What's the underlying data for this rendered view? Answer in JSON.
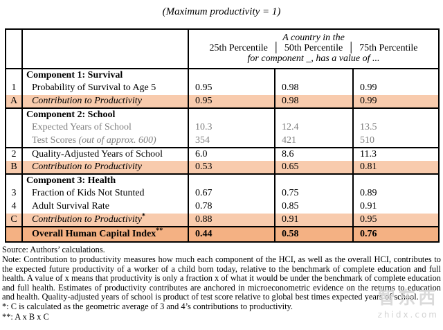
{
  "title": "(Maximum productivity = 1)",
  "header": {
    "line1": "A country in the",
    "separator": "│",
    "percentiles": [
      "25th Percentile",
      "50th Percentile",
      "75th Percentile"
    ],
    "line3": "for component _, has a value of ..."
  },
  "rows": [
    {
      "num": "",
      "label": "Component 1: Survival",
      "values": [
        "",
        "",
        ""
      ]
    },
    {
      "num": "1",
      "label": "Probability of Survival to Age 5",
      "values": [
        "0.95",
        "0.98",
        "0.99"
      ]
    },
    {
      "num": "A",
      "label": "Contribution to Productivity",
      "values": [
        "0.95",
        "0.98",
        "0.99"
      ]
    },
    {
      "num": "",
      "label": "Component 2: School",
      "values": [
        "",
        "",
        ""
      ]
    },
    {
      "num": "",
      "label": "Expected Years of School",
      "values": [
        "10.3",
        "12.4",
        "13.5"
      ]
    },
    {
      "num": "",
      "label": "Test Scores ",
      "label_note": "(out of approx. 600)",
      "values": [
        "354",
        "421",
        "510"
      ]
    },
    {
      "num": "2",
      "label": "Quality-Adjusted Years of School",
      "values": [
        "6.0",
        "8.6",
        "11.3"
      ]
    },
    {
      "num": "B",
      "label": "Contribution to Productivity",
      "values": [
        "0.53",
        "0.65",
        "0.81"
      ]
    },
    {
      "num": "",
      "label": "Component 3: Health",
      "values": [
        "",
        "",
        ""
      ]
    },
    {
      "num": "3",
      "label": "Fraction of Kids Not Stunted",
      "values": [
        "0.67",
        "0.75",
        "0.89"
      ]
    },
    {
      "num": "4",
      "label": "Adult Survival Rate",
      "values": [
        "0.78",
        "0.85",
        "0.91"
      ]
    },
    {
      "num": "C",
      "label": "Contribution to Productivity",
      "sup": "*",
      "values": [
        "0.88",
        "0.91",
        "0.95"
      ]
    },
    {
      "num": "",
      "label": "Overall Human Capital Index",
      "sup": "**",
      "values": [
        "0.44",
        "0.58",
        "0.76"
      ]
    }
  ],
  "footer": {
    "source": "Source: Authors’ calculations.",
    "note": "Note: Contribution to productivity measures how much each component of the HCI, as well as the overall HCI, contributes to the expected future productivity of a worker of a child born today, relative to the benchmark of complete education and full health. A value of x means that productivity is only a fraction x of what it would be under the benchmark of complete education and full health. Estimates of productivity contributes are anchored in microeconometric evidence on the returns to education and health. Quality-adjusted years of school is product of test score relative to global best times expected years of school.",
    "fn1": "*: C is calculated as the geometric average of 3 and 4’s contributions to productivity.",
    "fn2": "**: A x B x C"
  },
  "watermark": {
    "logo": "智东西",
    "site": "zhidx.com"
  },
  "colors": {
    "contribution_row_bg": "#F8CBAD",
    "overall_row_bg": "#F4B183",
    "muted_text": "#7f7f7f",
    "border": "#000000"
  }
}
